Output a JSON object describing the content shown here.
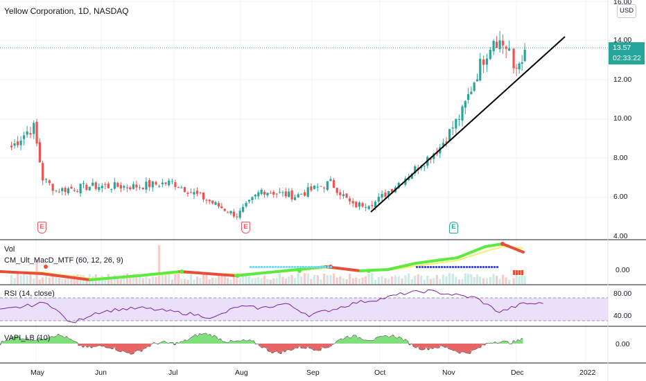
{
  "header": {
    "symbol_title": "Yellow Corporation, 1D, NASDAQ",
    "currency": "USD"
  },
  "price_axis": {
    "ticks": [
      "16.00",
      "14.00",
      "12.00",
      "10.00",
      "8.00",
      "6.00",
      "4.00"
    ],
    "last_price": "13.57",
    "countdown": "02:33:22"
  },
  "time_axis": {
    "labels": [
      "May",
      "Jun",
      "Jul",
      "Aug",
      "Sep",
      "Oct",
      "Nov",
      "Dec",
      "2022"
    ]
  },
  "earnings": {
    "badges": [
      {
        "label": "E",
        "kind": "past"
      },
      {
        "label": "E",
        "kind": "past"
      },
      {
        "label": "E",
        "kind": "future"
      }
    ]
  },
  "panes": {
    "volume": {
      "label": "Vol"
    },
    "macd": {
      "label": "CM_Ult_MacD_MTF (60, 12, 26, 9)",
      "ticks": [
        "0.00"
      ]
    },
    "rsi": {
      "label": "RSI (14, close)",
      "ticks": [
        "80.00",
        "40.00"
      ]
    },
    "vapi": {
      "label": "VAPI_LB (10)",
      "ticks": [
        "0.00"
      ]
    }
  },
  "colors": {
    "up": "#26a69a",
    "down": "#ef5350",
    "rsi_line": "#7b1fa2",
    "rsi_band": "#e9ddf8",
    "macd_up": "#5dea3f",
    "macd_down": "#e84d3a",
    "signal": "#f2f26b",
    "vapi_pos": "#7fe07a",
    "vapi_neg": "#e86565",
    "trendline": "#000000"
  },
  "chart_data": {
    "type": "candlestick",
    "title": "Yellow Corporation, 1D, NASDAQ",
    "x_months": [
      "May",
      "Jun",
      "Jul",
      "Aug",
      "Sep",
      "Oct",
      "Nov",
      "Dec",
      "2022"
    ],
    "ylim": [
      4,
      16
    ],
    "close_series": [
      {
        "date": "2021-04-20",
        "close": 8.6
      },
      {
        "date": "2021-04-27",
        "close": 9.4
      },
      {
        "date": "2021-04-30",
        "close": 9.6
      },
      {
        "date": "2021-05-04",
        "close": 7.0
      },
      {
        "date": "2021-05-10",
        "close": 6.4
      },
      {
        "date": "2021-05-25",
        "close": 6.6
      },
      {
        "date": "2021-06-15",
        "close": 6.6
      },
      {
        "date": "2021-07-01",
        "close": 6.8
      },
      {
        "date": "2021-07-15",
        "close": 6.0
      },
      {
        "date": "2021-07-30",
        "close": 5.1
      },
      {
        "date": "2021-08-10",
        "close": 6.4
      },
      {
        "date": "2021-08-25",
        "close": 6.1
      },
      {
        "date": "2021-09-10",
        "close": 6.8
      },
      {
        "date": "2021-09-20",
        "close": 5.6
      },
      {
        "date": "2021-09-30",
        "close": 5.8
      },
      {
        "date": "2021-10-15",
        "close": 7.2
      },
      {
        "date": "2021-10-29",
        "close": 8.6
      },
      {
        "date": "2021-11-08",
        "close": 10.4
      },
      {
        "date": "2021-11-16",
        "close": 12.8
      },
      {
        "date": "2021-11-22",
        "close": 14.2
      },
      {
        "date": "2021-11-29",
        "close": 13.6
      },
      {
        "date": "2021-12-01",
        "close": 12.3
      },
      {
        "date": "2021-12-06",
        "close": 13.57
      }
    ],
    "trendline": {
      "from": {
        "date": "2021-09-28",
        "price": 5.2
      },
      "to": {
        "date": "2021-12-27",
        "price": 14.1
      }
    },
    "rsi_levels": [
      70,
      30
    ],
    "rsi_series": [
      48,
      55,
      62,
      25,
      44,
      50,
      52,
      47,
      42,
      35,
      55,
      52,
      60,
      40,
      50,
      62,
      68,
      78,
      82,
      76,
      70,
      45,
      60
    ]
  }
}
